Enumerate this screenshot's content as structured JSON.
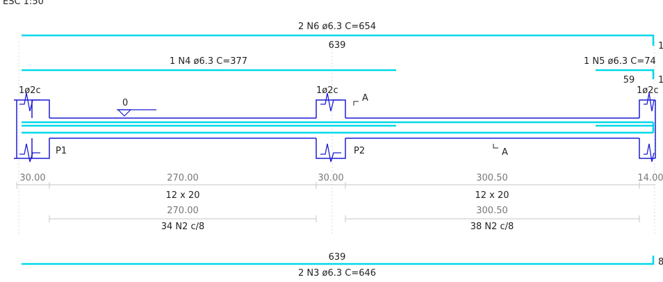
{
  "colors": {
    "rebar": "#00d8e8",
    "beam": "#1a1ad4",
    "dim_line": "#c4c4c4",
    "dim_text": "#777777",
    "text": "#222222",
    "grid": "#d8d8d8"
  },
  "header": {
    "scale_label": "ESC 1:50"
  },
  "rebars": {
    "n6": {
      "label": "2 N6 ø6.3 C=654",
      "length": "639",
      "end_hook": "1"
    },
    "n4": {
      "label": "1 N4 ø6.3 C=377"
    },
    "n5": {
      "label": "1 N5 ø6.3 C=74",
      "length": "59",
      "end_hook": "1"
    },
    "n3": {
      "label": "2 N3 ø6.3 C=646",
      "length": "639",
      "end_hook": "8"
    }
  },
  "supports": [
    {
      "name": "P1",
      "stirrups": "1ø2c"
    },
    {
      "name": "P2",
      "stirrups": "1ø2c"
    },
    {
      "name": "",
      "stirrups": "1ø2c"
    }
  ],
  "level_mark": "0",
  "section": {
    "start": "A",
    "end": "A"
  },
  "dimensions": [
    "30.00",
    "270.00",
    "30.00",
    "300.50",
    "14.00"
  ],
  "spans": [
    {
      "section": "12 x 20",
      "length": "270.00",
      "stirrups": "34 N2 c/8"
    },
    {
      "section": "12 x 20",
      "length": "300.50",
      "stirrups": "38 N2 c/8"
    }
  ]
}
